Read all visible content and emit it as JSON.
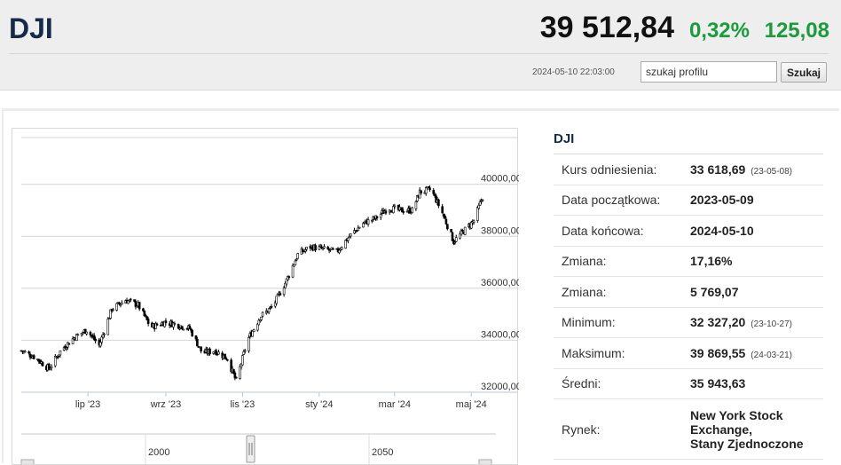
{
  "header": {
    "symbol": "DJI",
    "price": "39 512,84",
    "change_pct": "0,32%",
    "change_abs": "125,08",
    "datetime": "2024-05-10 22:03:00",
    "search_value": "szukaj profilu",
    "search_button": "Szukaj",
    "change_color": "#1a9c3c"
  },
  "info": {
    "title": "DJI",
    "rows": [
      {
        "label": "Kurs odniesienia:",
        "value": "33 618,69",
        "note": "(23-05-08)"
      },
      {
        "label": "Data początkowa:",
        "value": "2023-05-09",
        "note": ""
      },
      {
        "label": "Data końcowa:",
        "value": "2024-05-10",
        "note": ""
      },
      {
        "label": "Zmiana:",
        "value": "17,16%",
        "note": ""
      },
      {
        "label": "Zmiana:",
        "value": "5 769,07",
        "note": ""
      },
      {
        "label": "Minimum:",
        "value": "32 327,20",
        "note": "(23-10-27)"
      },
      {
        "label": "Maksimum:",
        "value": "39 869,55",
        "note": "(24-03-21)"
      },
      {
        "label": "Średni:",
        "value": "35 943,63",
        "note": ""
      }
    ],
    "market_label": "Rynek:",
    "market_line1": "New York Stock",
    "market_line2": "Exchange,",
    "market_line3": "Stany Zjednoczone"
  },
  "chart_data": {
    "type": "candlestick",
    "y_ticks": [
      "40000,00",
      "38000,00",
      "36000,00",
      "34000,00",
      "32000,00"
    ],
    "y_tick_values": [
      40000,
      38000,
      36000,
      34000,
      32000
    ],
    "ylim": [
      32000,
      41800
    ],
    "x_ticks": [
      "lip '23",
      "wrz '23",
      "lis '23",
      "sty '24",
      "mar '24",
      "maj '24"
    ],
    "x_tick_dates": [
      "2023-07-01",
      "2023-09-01",
      "2023-11-01",
      "2024-01-01",
      "2024-03-01",
      "2024-05-01"
    ],
    "date_range": [
      "2023-05-09",
      "2024-05-10"
    ],
    "navigator_labels": [
      "2000",
      "2050"
    ],
    "close_series": [
      {
        "date": "2023-05-09",
        "close": 33600
      },
      {
        "date": "2023-05-20",
        "close": 33350
      },
      {
        "date": "2023-05-31",
        "close": 32900
      },
      {
        "date": "2023-06-10",
        "close": 33650
      },
      {
        "date": "2023-06-20",
        "close": 34100
      },
      {
        "date": "2023-06-30",
        "close": 34400
      },
      {
        "date": "2023-07-10",
        "close": 33800
      },
      {
        "date": "2023-07-20",
        "close": 35200
      },
      {
        "date": "2023-07-31",
        "close": 35550
      },
      {
        "date": "2023-08-10",
        "close": 35350
      },
      {
        "date": "2023-08-20",
        "close": 34500
      },
      {
        "date": "2023-08-31",
        "close": 34700
      },
      {
        "date": "2023-09-10",
        "close": 34600
      },
      {
        "date": "2023-09-20",
        "close": 34450
      },
      {
        "date": "2023-09-30",
        "close": 33500
      },
      {
        "date": "2023-10-10",
        "close": 33600
      },
      {
        "date": "2023-10-20",
        "close": 33300
      },
      {
        "date": "2023-10-27",
        "close": 32420
      },
      {
        "date": "2023-11-05",
        "close": 34000
      },
      {
        "date": "2023-11-15",
        "close": 34900
      },
      {
        "date": "2023-11-25",
        "close": 35300
      },
      {
        "date": "2023-12-05",
        "close": 36200
      },
      {
        "date": "2023-12-15",
        "close": 37300
      },
      {
        "date": "2023-12-25",
        "close": 37600
      },
      {
        "date": "2024-01-05",
        "close": 37500
      },
      {
        "date": "2024-01-15",
        "close": 37400
      },
      {
        "date": "2024-01-25",
        "close": 38000
      },
      {
        "date": "2024-02-05",
        "close": 38500
      },
      {
        "date": "2024-02-15",
        "close": 38700
      },
      {
        "date": "2024-02-25",
        "close": 39100
      },
      {
        "date": "2024-03-05",
        "close": 39000
      },
      {
        "date": "2024-03-15",
        "close": 39000
      },
      {
        "date": "2024-03-21",
        "close": 39700
      },
      {
        "date": "2024-03-30",
        "close": 39800
      },
      {
        "date": "2024-04-08",
        "close": 38900
      },
      {
        "date": "2024-04-17",
        "close": 37800
      },
      {
        "date": "2024-04-25",
        "close": 38200
      },
      {
        "date": "2024-05-03",
        "close": 38600
      },
      {
        "date": "2024-05-10",
        "close": 39510
      }
    ]
  }
}
